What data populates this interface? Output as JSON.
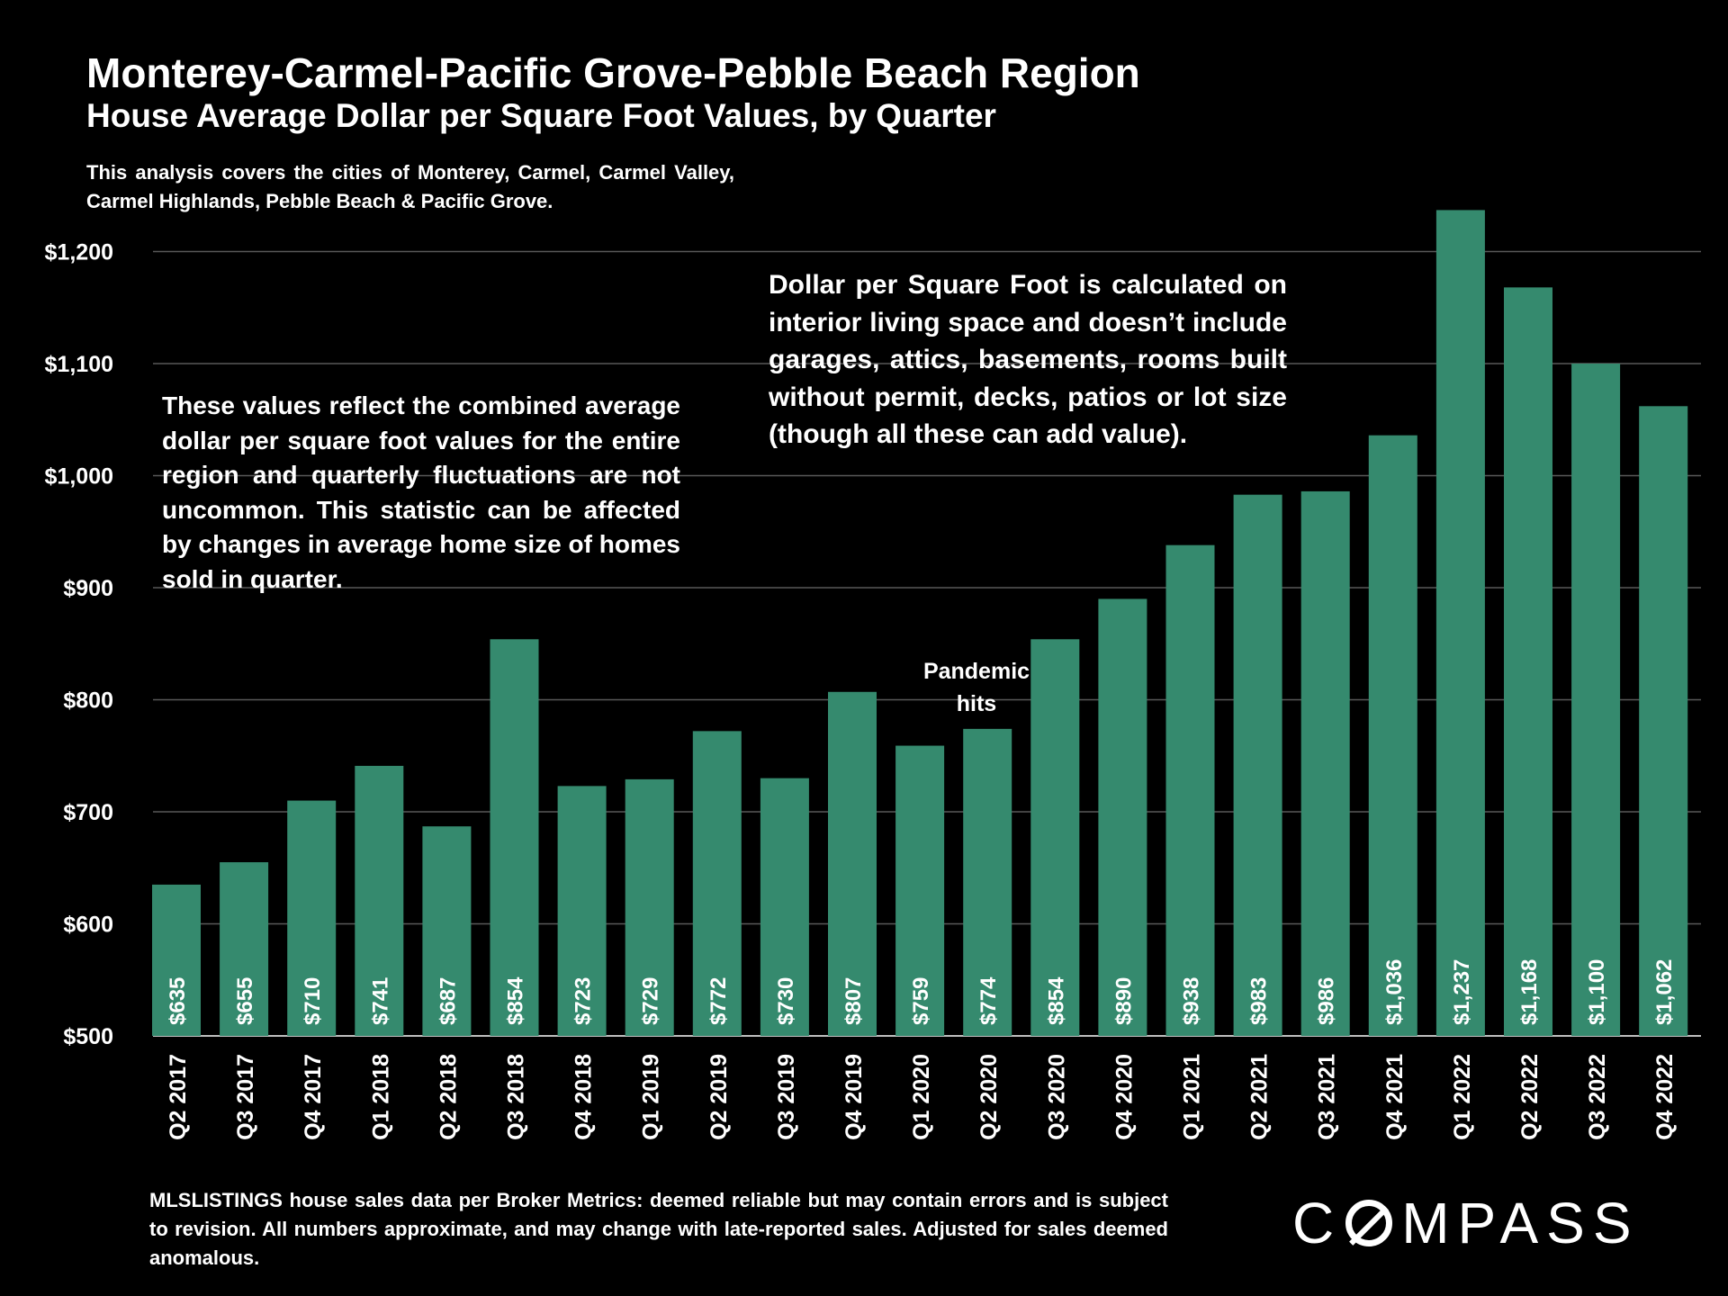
{
  "page": {
    "footer": "MLSLISTINGS house sales data per Broker Metrics:  deemed reliable but may contain errors and is subject to revision. All numbers approximate, and may change with late-reported sales. Adjusted for sales deemed anomalous.",
    "logo": "COMPASS"
  },
  "chart_data": {
    "type": "bar",
    "title": "Monterey-Carmel-Pacific Grove-Pebble Beach Region",
    "subtitle": "House Average Dollar per Square Foot Values, by Quarter",
    "coverage_note": "This analysis covers the cities of Monterey, Carmel, Carmel Valley, Carmel Highlands, Pebble Beach & Pacific Grove.",
    "left_note": "These values reflect the combined average dollar per square foot values for the entire region and quarterly fluctuations are not uncommon. This statistic can be affected by changes in average home size of homes sold in quarter.",
    "right_note": "Dollar per Square Foot is calculated on interior living space and doesn’t include garages, attics, basements, rooms built without permit, decks, patios or lot size (though all these can add value).",
    "annotation": {
      "text": "Pandemic hits",
      "category": "Q2 2020"
    },
    "categories": [
      "Q2 2017",
      "Q3 2017",
      "Q4 2017",
      "Q1 2018",
      "Q2 2018",
      "Q3 2018",
      "Q4 2018",
      "Q1 2019",
      "Q2 2019",
      "Q3 2019",
      "Q4 2019",
      "Q1 2020",
      "Q2 2020",
      "Q3 2020",
      "Q4 2020",
      "Q1 2021",
      "Q2 2021",
      "Q3 2021",
      "Q4 2021",
      "Q1 2022",
      "Q2 2022",
      "Q3 2022",
      "Q4 2022"
    ],
    "values": [
      635,
      655,
      710,
      741,
      687,
      854,
      723,
      729,
      772,
      730,
      807,
      759,
      774,
      854,
      890,
      938,
      983,
      986,
      1036,
      1237,
      1168,
      1100,
      1062
    ],
    "data_labels": [
      "$635",
      "$655",
      "$710",
      "$741",
      "$687",
      "$854",
      "$723",
      "$729",
      "$772",
      "$730",
      "$807",
      "$759",
      "$774",
      "$854",
      "$890",
      "$938",
      "$983",
      "$986",
      "$1,036",
      "$1,237",
      "$1,168",
      "$1,100",
      "$1,062"
    ],
    "yticks": [
      500,
      600,
      700,
      800,
      900,
      1000,
      1100,
      1200
    ],
    "ytick_labels": [
      "$500",
      "$600",
      "$700",
      "$800",
      "$900",
      "$1,000",
      "$1,100",
      "$1,200"
    ],
    "ylim": [
      500,
      1240
    ],
    "grid": true,
    "bar_color": "#358a6e",
    "grid_color": "#595959"
  }
}
